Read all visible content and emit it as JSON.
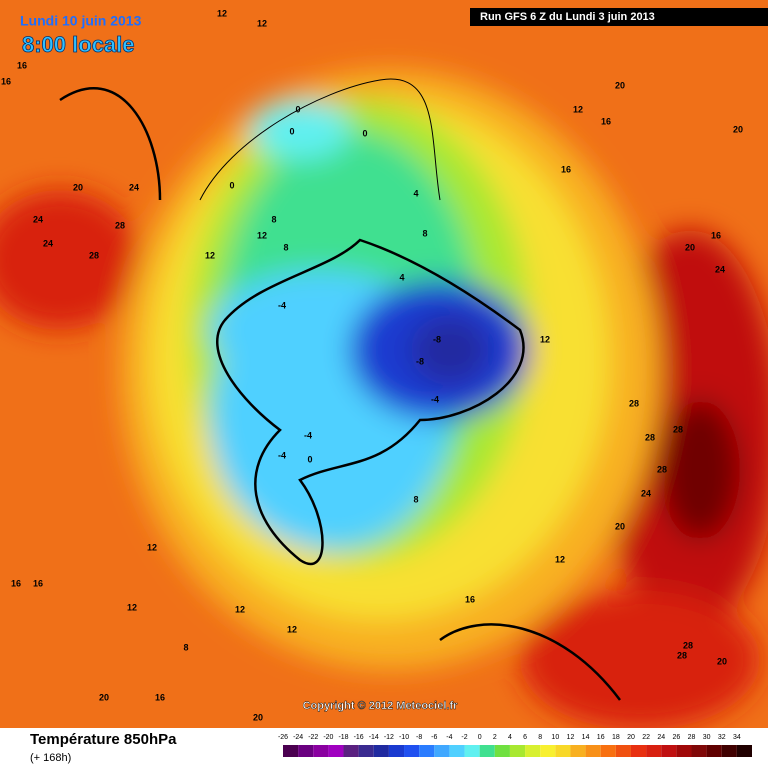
{
  "header": {
    "date": "Lundi 10 juin 2013",
    "time": "8:00 locale",
    "run": "Run GFS 6 Z du Lundi 3 juin 2013"
  },
  "copyright": "Copyright © 2012 Meteociel.fr",
  "footer": {
    "title": "Température 850hPa",
    "lead": "(+ 168h)"
  },
  "legend": {
    "labels": [
      -26,
      -24,
      -22,
      -20,
      -18,
      -16,
      -14,
      -12,
      -10,
      -8,
      -6,
      -4,
      -2,
      0,
      2,
      4,
      6,
      8,
      10,
      12,
      14,
      16,
      18,
      20,
      22,
      24,
      26,
      28,
      30,
      32,
      34
    ],
    "colors": [
      "#4b0050",
      "#6a0080",
      "#8a00a0",
      "#a000c0",
      "#5a2080",
      "#3a2a90",
      "#202aa0",
      "#1a3ad0",
      "#2050f0",
      "#2a7cff",
      "#40a8ff",
      "#50d0ff",
      "#60f0f0",
      "#40e090",
      "#70e040",
      "#a8e830",
      "#d8f030",
      "#f8f030",
      "#f8d828",
      "#f8b020",
      "#f89018",
      "#f87010",
      "#f05010",
      "#e83010",
      "#d82010",
      "#c01010",
      "#a00808",
      "#800808",
      "#600000",
      "#400000",
      "#200000"
    ]
  },
  "map_labels": [
    "12",
    "12",
    "16",
    "16",
    "24",
    "20",
    "24",
    "28",
    "24",
    "28",
    "12",
    "0",
    "0",
    "0",
    "0",
    "8",
    "12",
    "8",
    "4",
    "8",
    "4",
    "-4",
    "-8",
    "-8",
    "-4",
    "-4",
    "-4",
    "0",
    "8",
    "12",
    "12",
    "16",
    "16",
    "20",
    "20",
    "24",
    "28",
    "28",
    "28",
    "28",
    "24",
    "20",
    "20",
    "16",
    "16",
    "12",
    "12",
    "12",
    "8",
    "16",
    "20",
    "20",
    "28",
    "28",
    "20",
    "12",
    "16",
    "16",
    "12"
  ]
}
